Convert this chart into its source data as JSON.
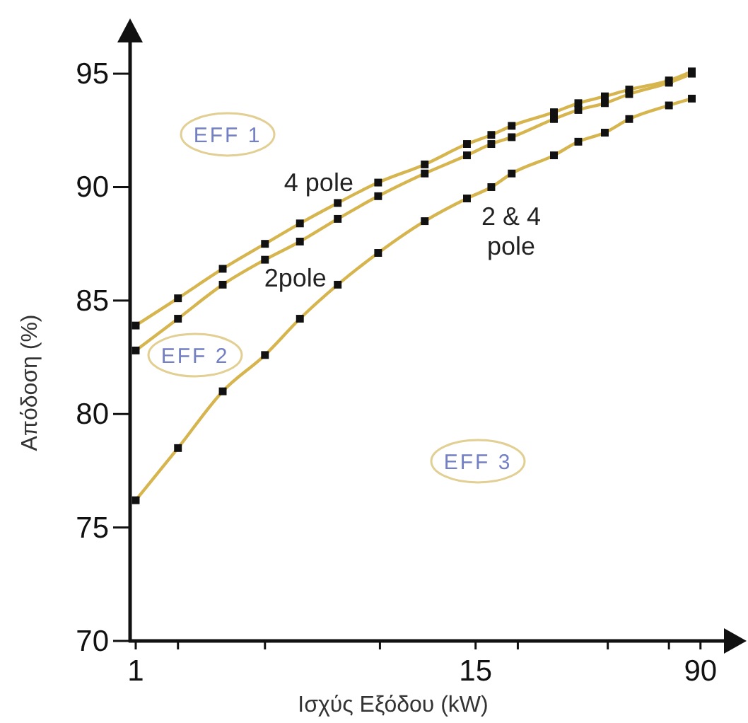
{
  "chart_data": {
    "type": "line",
    "xlabel": "Ισχύς Εξόδου (kW)",
    "ylabel": "Απόδοση (%)",
    "x": [
      1,
      1.4,
      2,
      2.8,
      3.7,
      5,
      6.9,
      10,
      14,
      17,
      20,
      28,
      34,
      42,
      51,
      70,
      84
    ],
    "series": [
      {
        "name": "4 pole",
        "color": "#d6b54e",
        "values": [
          83.9,
          85.1,
          86.4,
          87.5,
          88.4,
          89.3,
          90.2,
          91.0,
          91.9,
          92.3,
          92.7,
          93.3,
          93.7,
          94.0,
          94.3,
          94.7,
          95.1
        ]
      },
      {
        "name": "2pole",
        "color": "#d6b54e",
        "values": [
          82.8,
          84.2,
          85.7,
          86.8,
          87.6,
          88.6,
          89.6,
          90.6,
          91.4,
          91.9,
          92.2,
          93.0,
          93.4,
          93.7,
          94.1,
          94.6,
          95.0
        ]
      },
      {
        "name": "2 & 4 pole",
        "color": "#d6b54e",
        "values": [
          76.2,
          78.5,
          81.0,
          82.6,
          84.2,
          85.7,
          87.1,
          88.5,
          89.5,
          90.0,
          90.6,
          91.4,
          92.0,
          92.4,
          93.0,
          93.6,
          93.9
        ]
      }
    ],
    "xlim": [
      0.956,
      111
    ],
    "xticks": [
      1,
      {
        "value": 1.4,
        "label": null
      },
      {
        "value": 2.8,
        "label": null
      },
      {
        "value": 7,
        "label": null
      },
      15,
      {
        "value": 21,
        "label": null
      },
      {
        "value": 43,
        "label": null
      },
      {
        "value": 70,
        "label": null
      },
      90
    ],
    "ylim": [
      70,
      96.5
    ],
    "yticks": [
      70,
      75,
      80,
      85,
      90,
      95
    ],
    "log": "x",
    "marker": "square",
    "line_style": "solid",
    "legend": false,
    "grid": false,
    "annotations": [
      "EFF 1",
      "EFF 2",
      "EFF 3"
    ]
  }
}
